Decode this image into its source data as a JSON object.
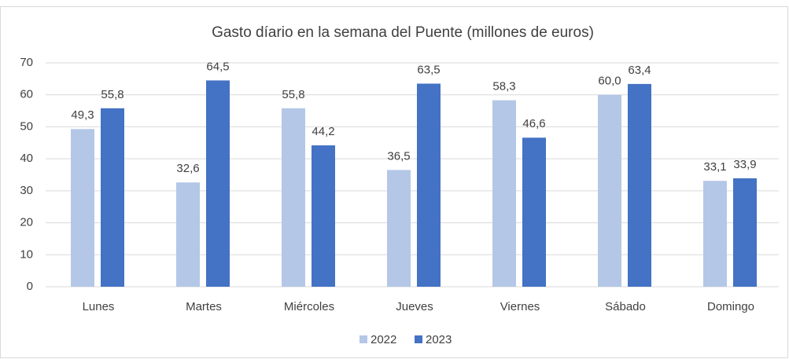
{
  "chart_data": {
    "type": "bar",
    "title": "Gasto díario en la semana del Puente (millones de euros)",
    "categories": [
      "Lunes",
      "Martes",
      "Miércoles",
      "Jueves",
      "Viernes",
      "Sábado",
      "Domingo"
    ],
    "series": [
      {
        "name": "2022",
        "color": "#b4c7e7",
        "values": [
          49.3,
          32.6,
          55.8,
          36.5,
          58.3,
          60.0,
          33.1
        ],
        "value_labels": [
          "49,3",
          "32,6",
          "55,8",
          "36,5",
          "58,3",
          "60,0",
          "33,1"
        ]
      },
      {
        "name": "2023",
        "color": "#4472c4",
        "values": [
          55.8,
          64.5,
          44.2,
          63.5,
          46.6,
          63.4,
          33.9
        ],
        "value_labels": [
          "55,8",
          "64,5",
          "44,2",
          "63,5",
          "46,6",
          "63,4",
          "33,9"
        ]
      }
    ],
    "ylim": [
      0,
      70
    ],
    "yticks": [
      0,
      10,
      20,
      30,
      40,
      50,
      60,
      70
    ],
    "grid": true,
    "legend": "bottom"
  }
}
